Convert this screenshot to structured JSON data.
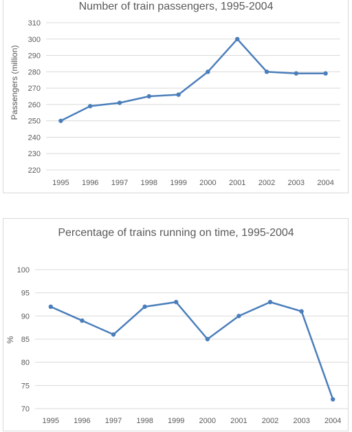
{
  "chart_data": [
    {
      "type": "line",
      "title": "Number of train passengers, 1995-2004",
      "xlabel": "",
      "ylabel": "Passengers (million)",
      "categories": [
        "1995",
        "1996",
        "1997",
        "1998",
        "1999",
        "2000",
        "2001",
        "2002",
        "2003",
        "2004"
      ],
      "series": [
        {
          "values": [
            250,
            259,
            261,
            265,
            266,
            280,
            300,
            280,
            279,
            279
          ]
        }
      ],
      "ylim": [
        220,
        310
      ],
      "yticks": [
        220,
        230,
        240,
        250,
        260,
        270,
        280,
        290,
        300,
        310
      ],
      "grid": true,
      "color": "#4a7ebb"
    },
    {
      "type": "line",
      "title": "Percentage of trains running on time, 1995-2004",
      "xlabel": "",
      "ylabel": "%",
      "categories": [
        "1995",
        "1996",
        "1997",
        "1998",
        "1999",
        "2000",
        "2001",
        "2002",
        "2003",
        "2004"
      ],
      "series": [
        {
          "values": [
            92,
            89,
            86,
            92,
            93,
            85,
            90,
            93,
            91,
            72
          ]
        }
      ],
      "ylim": [
        70,
        100
      ],
      "yticks": [
        70,
        75,
        80,
        85,
        90,
        95,
        100
      ],
      "grid": true,
      "color": "#4a7ebb"
    }
  ]
}
